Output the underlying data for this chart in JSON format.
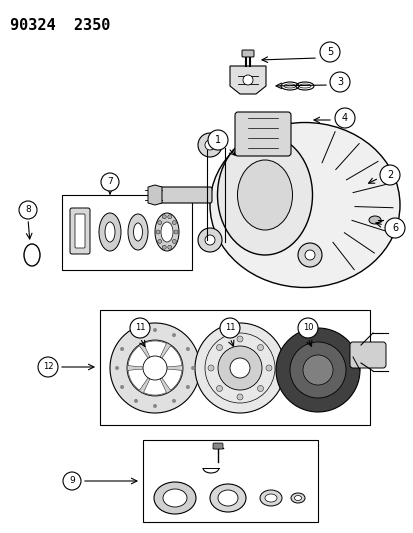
{
  "title": "90324  2350",
  "bg": "#ffffff",
  "lc": "#000000",
  "fig_width": 4.14,
  "fig_height": 5.33,
  "dpi": 100
}
